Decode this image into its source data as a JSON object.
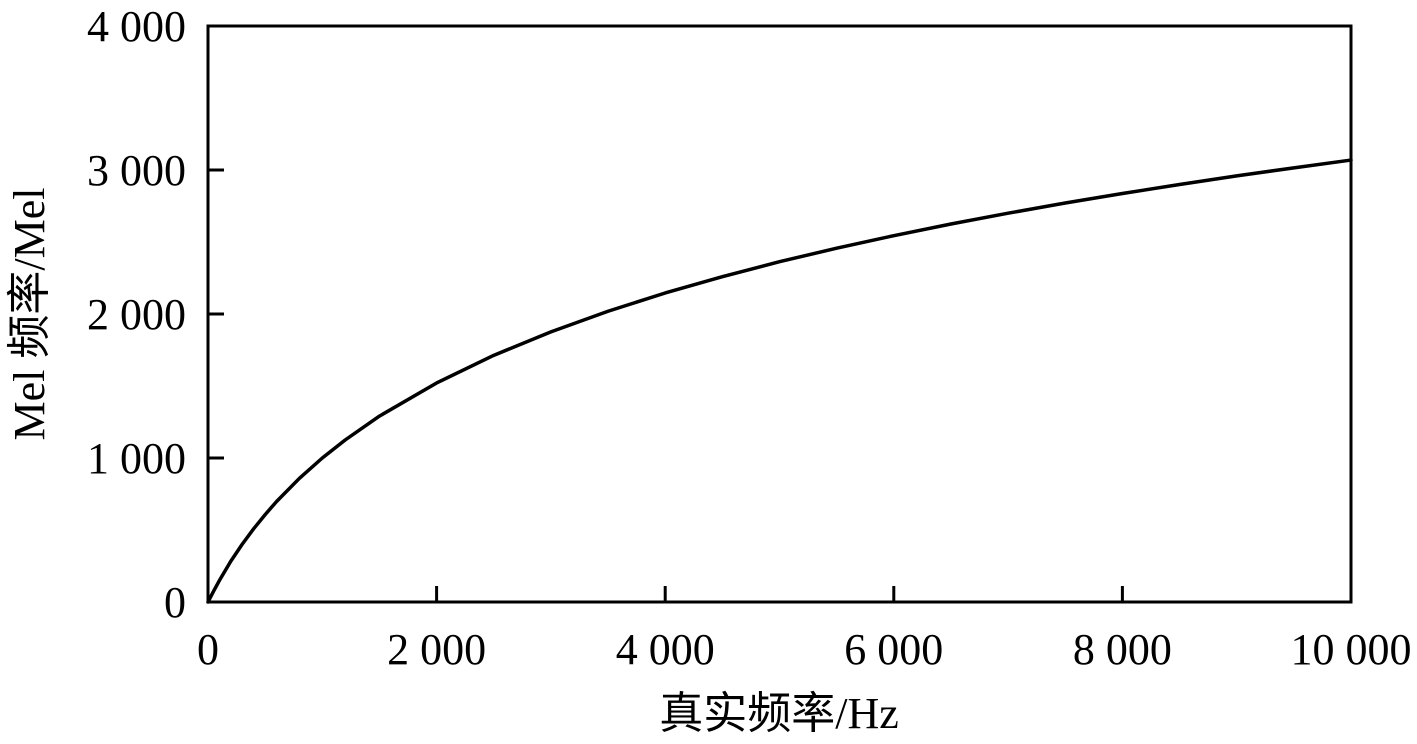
{
  "chart_data": {
    "type": "line",
    "title": "",
    "xlabel": "真实频率/Hz",
    "ylabel": "Mel 频率/Mel",
    "xlim": [
      0,
      10000
    ],
    "ylim": [
      0,
      4000
    ],
    "x_ticks": [
      0,
      2000,
      4000,
      6000,
      8000,
      10000
    ],
    "x_tick_labels": [
      "0",
      "2 000",
      "4 000",
      "6 000",
      "8 000",
      "10 000"
    ],
    "y_ticks": [
      0,
      1000,
      2000,
      3000,
      4000
    ],
    "y_tick_labels": [
      "0",
      "1 000",
      "2 000",
      "3 000",
      "4 000"
    ],
    "grid": false,
    "legend": "none",
    "series": [
      {
        "color": "#000000",
        "x": [
          0,
          50,
          100,
          200,
          300,
          400,
          500,
          600,
          800,
          1000,
          1200,
          1500,
          2000,
          2500,
          3000,
          3500,
          4000,
          4500,
          5000,
          5500,
          6000,
          6500,
          7000,
          7500,
          8000,
          8500,
          9000,
          9500,
          10000
        ],
        "y": [
          0,
          77,
          150,
          284,
          402,
          509,
          607,
          698,
          859,
          1000,
          1125,
          1291,
          1521,
          1713,
          1876,
          2019,
          2146,
          2259,
          2363,
          2457,
          2544,
          2625,
          2700,
          2771,
          2837,
          2899,
          2959,
          3015,
          3069
        ]
      }
    ]
  }
}
